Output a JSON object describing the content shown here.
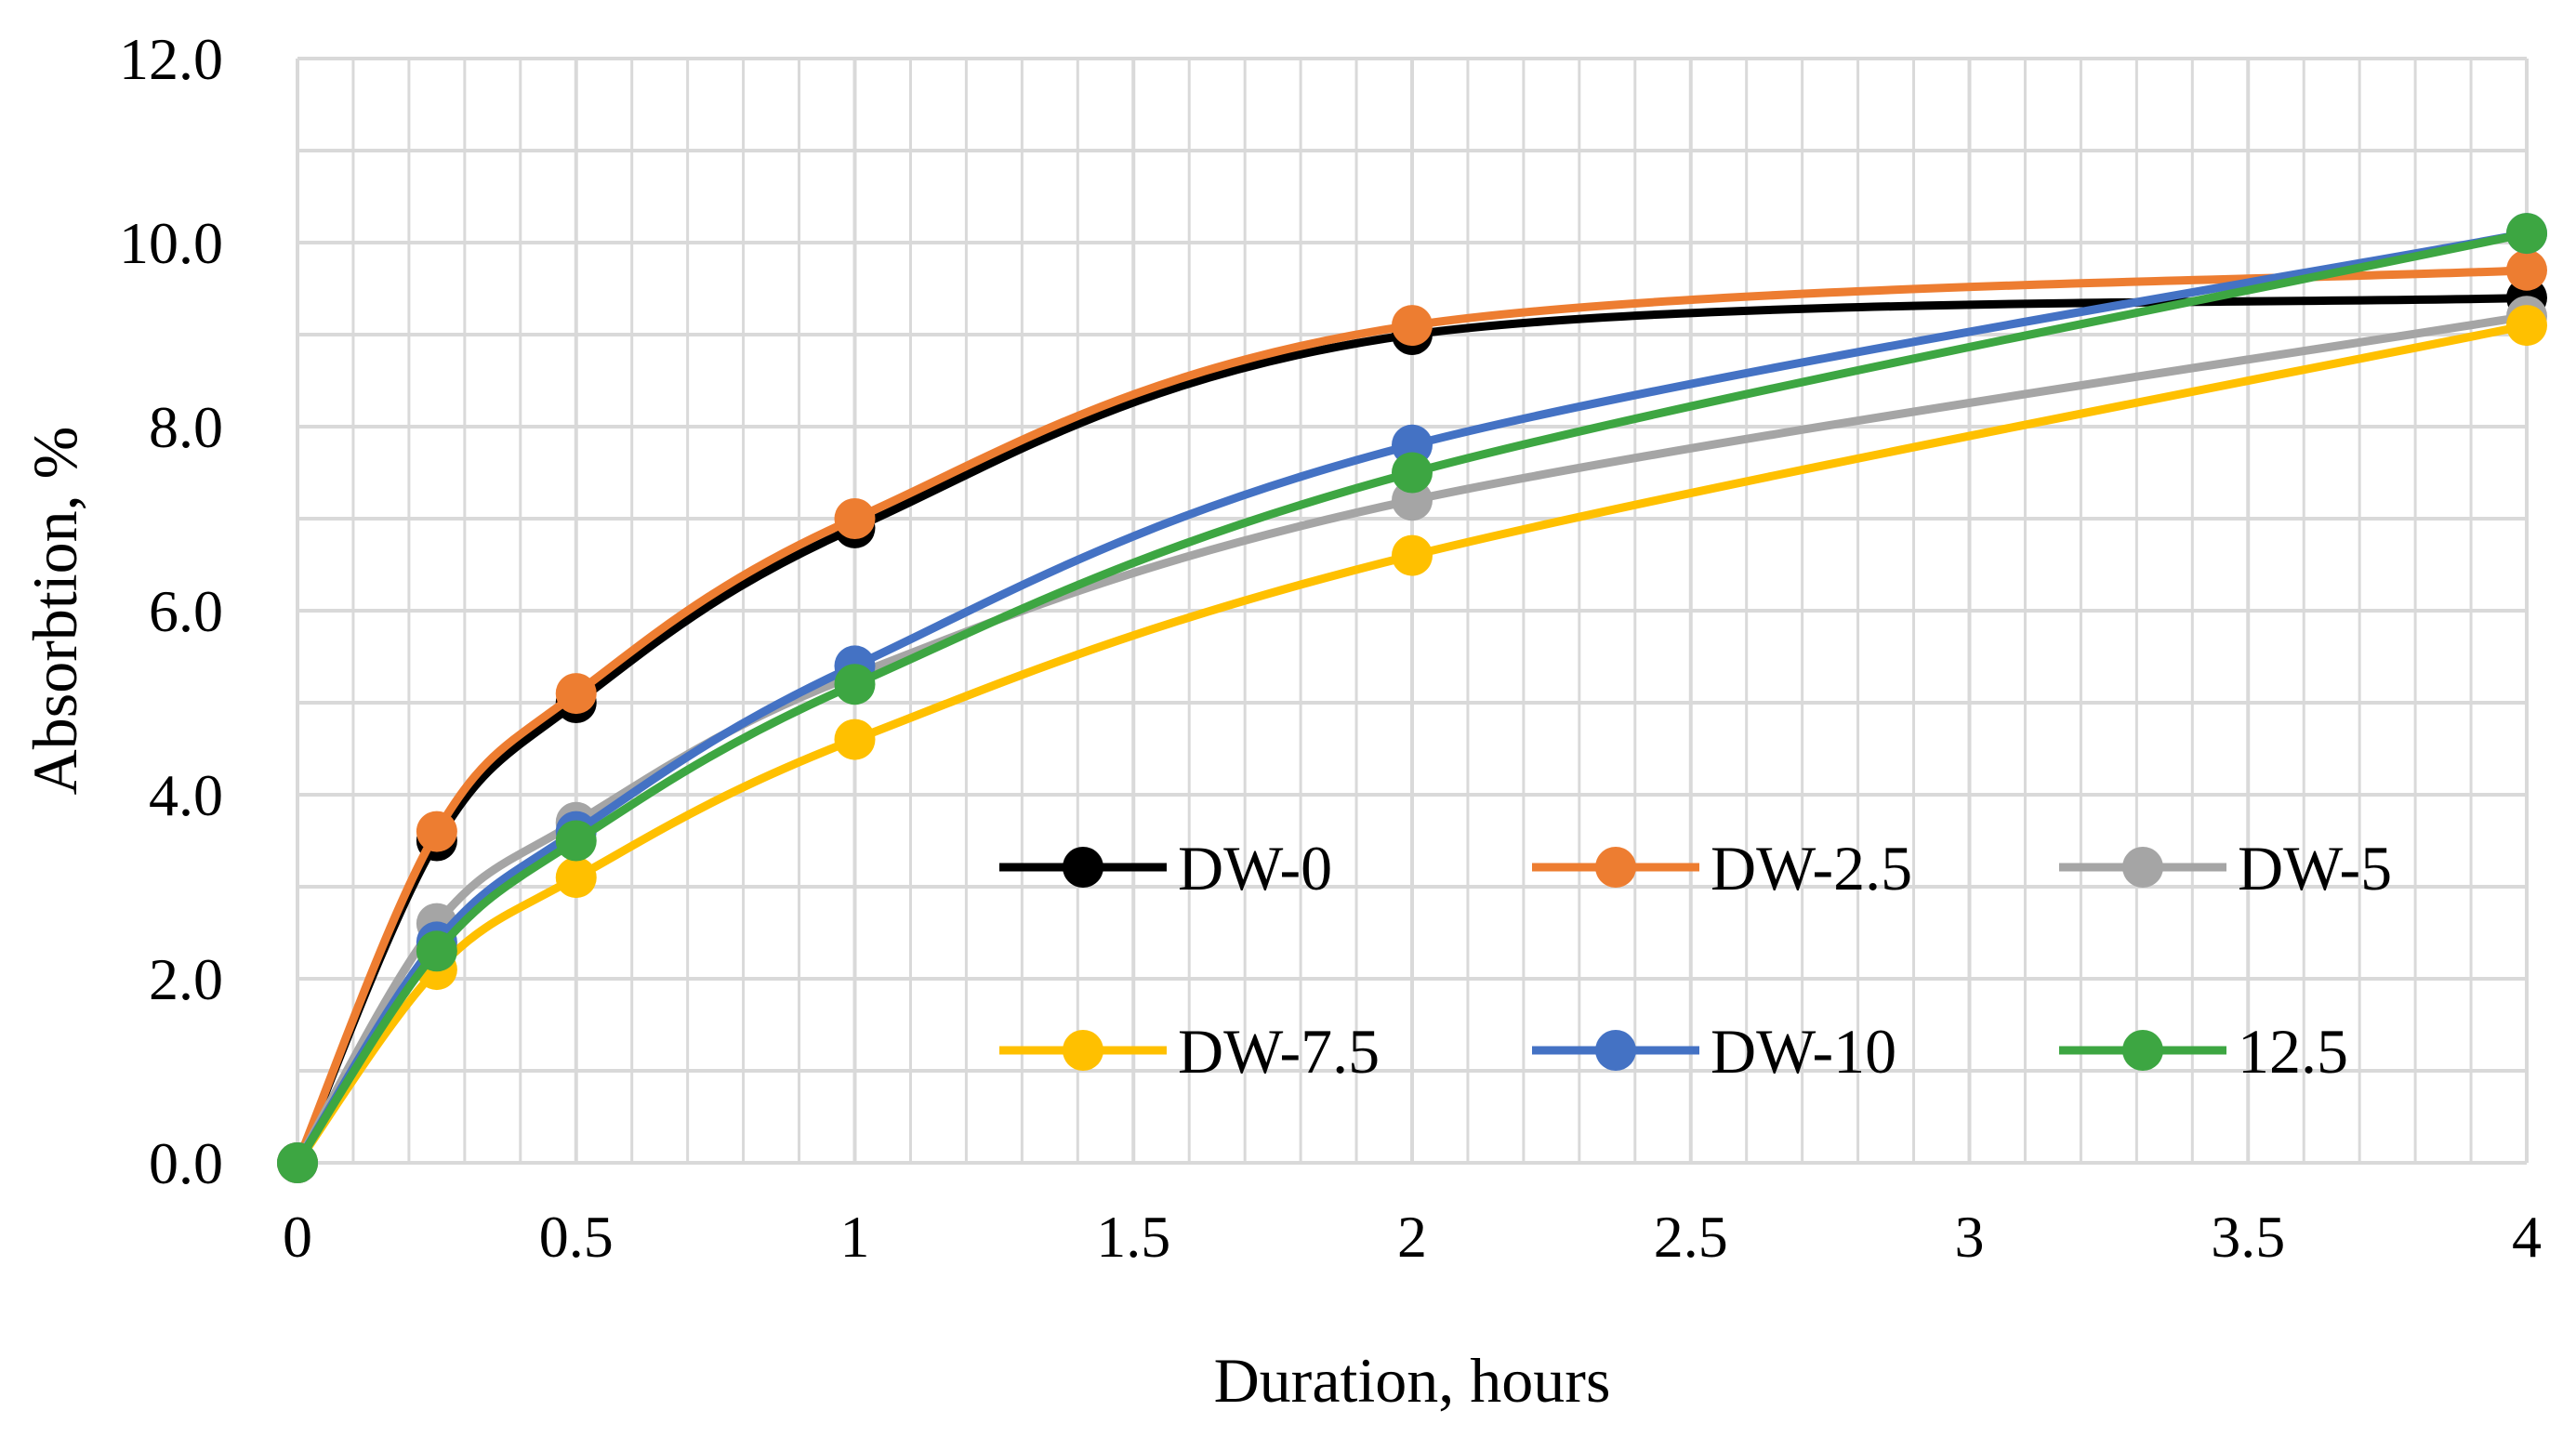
{
  "chart_data": {
    "type": "line",
    "title": "",
    "xlabel": "Duration, hours",
    "ylabel": "Absorbtion, %",
    "xlim": [
      0,
      4
    ],
    "ylim": [
      0,
      12
    ],
    "x_ticks": [
      "0",
      "0.5",
      "1",
      "1.5",
      "2",
      "2.5",
      "3",
      "3.5",
      "4"
    ],
    "y_ticks": [
      "0.0",
      "2.0",
      "4.0",
      "6.0",
      "8.0",
      "10.0",
      "12.0"
    ],
    "grid": true,
    "legend_position": "bottom-right inside",
    "x": [
      0,
      0.25,
      0.5,
      1,
      2,
      4
    ],
    "series": [
      {
        "name": "DW-0",
        "color": "#000000",
        "values": [
          0,
          3.5,
          5.0,
          6.9,
          9.0,
          9.4
        ]
      },
      {
        "name": "DW-2.5",
        "color": "#ED7D31",
        "values": [
          0,
          3.6,
          5.1,
          7.0,
          9.1,
          9.7
        ]
      },
      {
        "name": "DW-5",
        "color": "#A5A5A5",
        "values": [
          0,
          2.6,
          3.7,
          5.3,
          7.2,
          9.2
        ]
      },
      {
        "name": "DW-7.5",
        "color": "#FFC000",
        "values": [
          0,
          2.1,
          3.1,
          4.6,
          6.6,
          9.1
        ]
      },
      {
        "name": "DW-10",
        "color": "#4472C4",
        "values": [
          0,
          2.4,
          3.6,
          5.4,
          7.8,
          10.1
        ]
      },
      {
        "name": "12.5",
        "color": "#3DA642",
        "values": [
          0,
          2.3,
          3.5,
          5.2,
          7.5,
          10.1
        ]
      }
    ]
  }
}
